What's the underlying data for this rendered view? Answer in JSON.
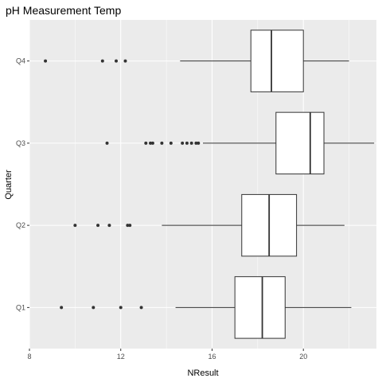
{
  "chart_data": {
    "type": "box",
    "orientation": "horizontal",
    "title": "pH Measurement Temp",
    "xlabel": "NResult",
    "ylabel": "Quarter",
    "xlim": [
      8,
      23.2
    ],
    "x_ticks": [
      8,
      12,
      16,
      20
    ],
    "grid": true,
    "categories": [
      "Q1",
      "Q2",
      "Q3",
      "Q4"
    ],
    "boxes": [
      {
        "category": "Q1",
        "whisker_low": 14.4,
        "q1": 17.0,
        "median": 18.2,
        "q3": 19.2,
        "whisker_high": 22.1,
        "outliers": [
          9.4,
          10.8,
          12.0,
          12.9
        ]
      },
      {
        "category": "Q2",
        "whisker_low": 13.8,
        "q1": 17.3,
        "median": 18.5,
        "q3": 19.7,
        "whisker_high": 21.8,
        "outliers": [
          10.0,
          11.0,
          11.5,
          12.3,
          12.4
        ]
      },
      {
        "category": "Q3",
        "whisker_low": 15.6,
        "q1": 18.8,
        "median": 20.3,
        "q3": 20.9,
        "whisker_high": 23.1,
        "outliers": [
          11.4,
          13.1,
          13.3,
          13.4,
          13.8,
          14.2,
          14.7,
          14.9,
          15.1,
          15.3,
          15.4
        ]
      },
      {
        "category": "Q4",
        "whisker_low": 14.6,
        "q1": 17.7,
        "median": 18.6,
        "q3": 20.0,
        "whisker_high": 22.0,
        "outliers": [
          8.7,
          11.2,
          11.8,
          12.2
        ]
      }
    ],
    "colors": {
      "panel": "#ebebeb",
      "grid_major": "#ffffff",
      "box_fill": "#ffffff",
      "box_line": "#333333",
      "outlier": "#333333"
    }
  }
}
